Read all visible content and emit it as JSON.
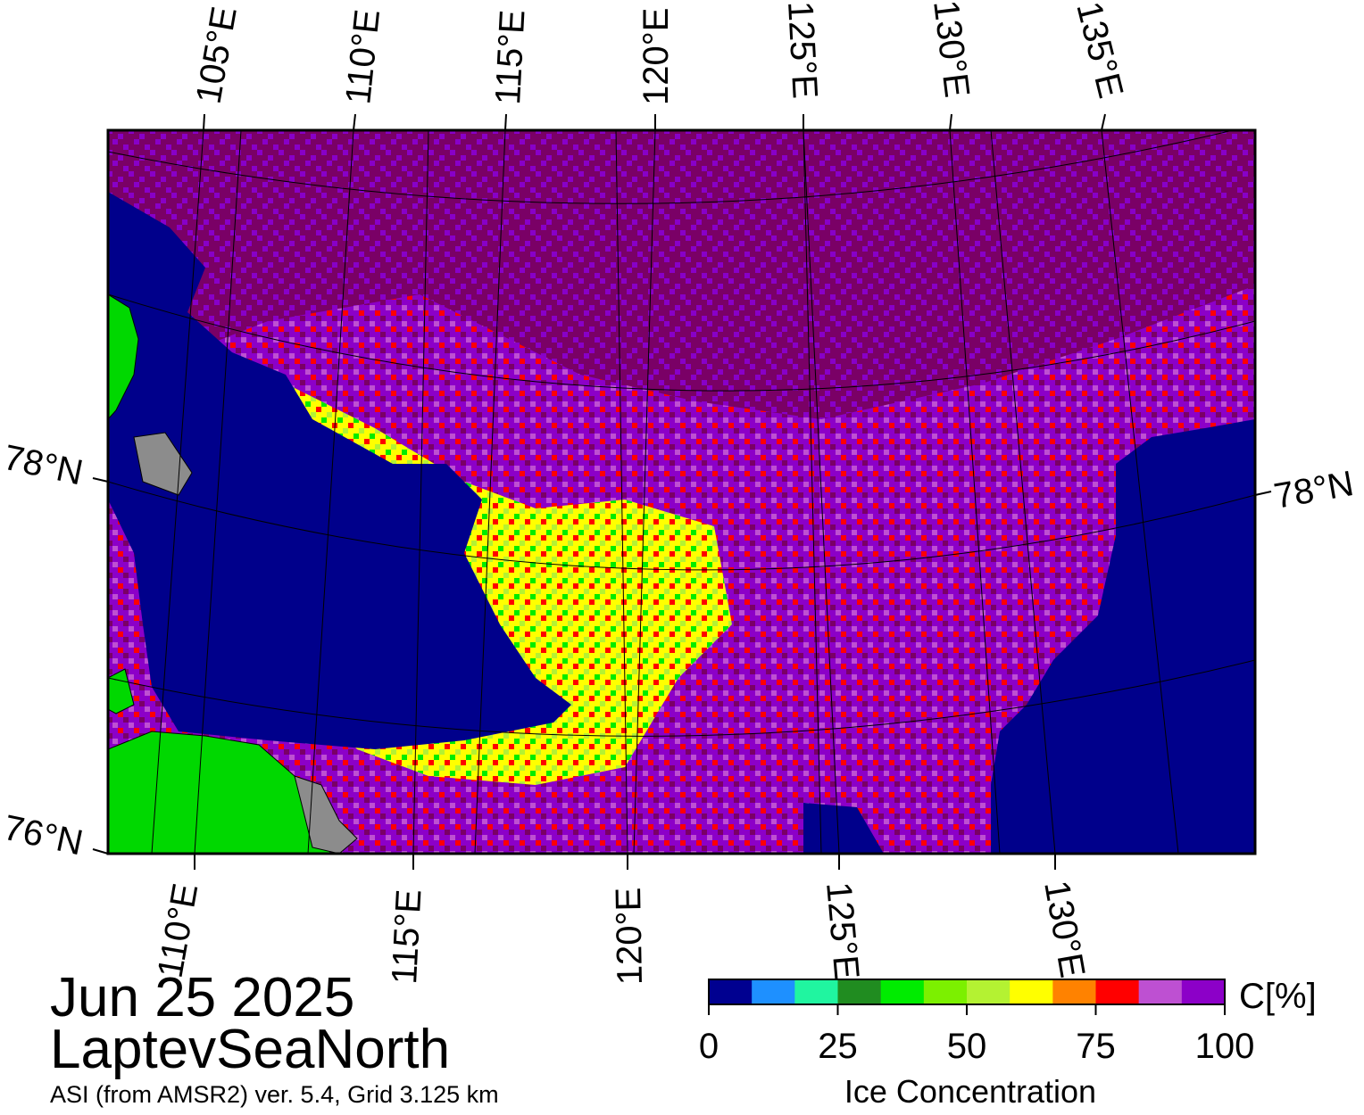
{
  "map": {
    "date": "Jun 25 2025",
    "region": "LaptevSeaNorth",
    "product": "ASI (from AMSR2) ver. 5.4,  Grid 3.125 km",
    "top_longitude_labels": [
      "105°E",
      "110°E",
      "115°E",
      "120°E",
      "125°E",
      "130°E",
      "135°E"
    ],
    "bottom_longitude_labels": [
      "110°E",
      "115°E",
      "120°E",
      "125°E",
      "130°E"
    ],
    "latitude_labels": {
      "left_upper": "78°N",
      "left_lower": "76°N",
      "right": "78°N"
    },
    "colors": {
      "open_water": "#00008b",
      "land": "#00d800",
      "land_ice": "#8c8c8c",
      "high_ice": "#7a0066"
    }
  },
  "legend": {
    "title": "Ice Concentration",
    "unit": "C[%]",
    "ticks": [
      "0",
      "25",
      "50",
      "75",
      "100"
    ],
    "min": 0,
    "max": 100,
    "colors": [
      "#000090",
      "#1e90ff",
      "#20f5a0",
      "#208c20",
      "#00ec00",
      "#7cf000",
      "#b4f232",
      "#ffff00",
      "#ff8200",
      "#ff0000",
      "#be50d2",
      "#8c00c8"
    ]
  }
}
